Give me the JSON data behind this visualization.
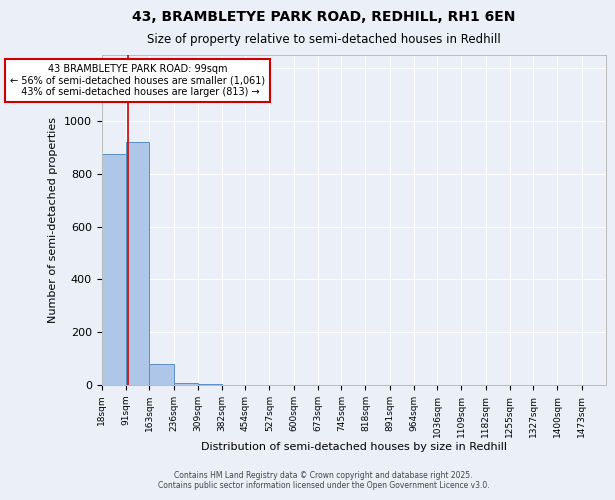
{
  "title_line1": "43, BRAMBLETYE PARK ROAD, REDHILL, RH1 6EN",
  "title_line2": "Size of property relative to semi-detached houses in Redhill",
  "xlabel": "Distribution of semi-detached houses by size in Redhill",
  "ylabel": "Number of semi-detached properties",
  "bin_labels": [
    "18sqm",
    "91sqm",
    "163sqm",
    "236sqm",
    "309sqm",
    "382sqm",
    "454sqm",
    "527sqm",
    "600sqm",
    "673sqm",
    "745sqm",
    "818sqm",
    "891sqm",
    "964sqm",
    "1036sqm",
    "1109sqm",
    "1182sqm",
    "1255sqm",
    "1327sqm",
    "1400sqm",
    "1473sqm"
  ],
  "bin_edges": [
    18,
    91,
    163,
    236,
    309,
    382,
    454,
    527,
    600,
    673,
    745,
    818,
    891,
    964,
    1036,
    1109,
    1182,
    1255,
    1327,
    1400,
    1473
  ],
  "bar_heights": [
    875,
    920,
    80,
    8,
    2,
    1,
    1,
    0,
    0,
    0,
    0,
    0,
    0,
    0,
    0,
    0,
    0,
    0,
    0,
    0
  ],
  "bar_color": "#aec6e8",
  "bar_edge_color": "#5a8fc2",
  "property_size": 99,
  "redline_color": "#cc0000",
  "annotation_line1": "43 BRAMBLETYE PARK ROAD: 99sqm",
  "annotation_line2": "← 56% of semi-detached houses are smaller (1,061)",
  "annotation_line3": "  43% of semi-detached houses are larger (813) →",
  "annotation_box_color": "#ffffff",
  "annotation_box_edge_color": "#cc0000",
  "ylim": [
    0,
    1250
  ],
  "yticks": [
    0,
    200,
    400,
    600,
    800,
    1000,
    1200
  ],
  "background_color": "#eaeff8",
  "grid_color": "#ffffff",
  "footer_line1": "Contains HM Land Registry data © Crown copyright and database right 2025.",
  "footer_line2": "Contains public sector information licensed under the Open Government Licence v3.0."
}
